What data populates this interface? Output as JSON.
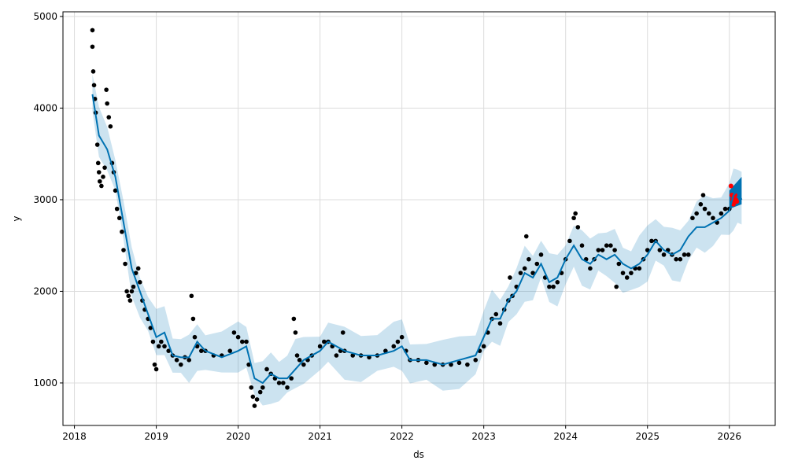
{
  "chart_data": {
    "type": "line",
    "title": "",
    "xlabel": "ds",
    "ylabel": "y",
    "xlim": [
      2017.86,
      2026.56
    ],
    "ylim": [
      536,
      5051
    ],
    "grid": true,
    "x_ticks": [
      2018,
      2019,
      2020,
      2021,
      2022,
      2023,
      2024,
      2025,
      2026
    ],
    "x_tick_labels": [
      "2018",
      "2019",
      "2020",
      "2021",
      "2022",
      "2023",
      "2024",
      "2025",
      "2026"
    ],
    "y_ticks": [
      1000,
      2000,
      3000,
      4000,
      5000
    ],
    "y_tick_labels": [
      "1000",
      "2000",
      "3000",
      "4000",
      "5000"
    ],
    "colors": {
      "observed": "#000000",
      "yhat": "#0072B2",
      "band": "#0072B2",
      "actual_recent": "#ff0000"
    },
    "observed": [
      [
        2018.22,
        4850
      ],
      [
        2018.22,
        4670
      ],
      [
        2018.23,
        4400
      ],
      [
        2018.24,
        4250
      ],
      [
        2018.25,
        4100
      ],
      [
        2018.26,
        3950
      ],
      [
        2018.28,
        3600
      ],
      [
        2018.29,
        3400
      ],
      [
        2018.3,
        3300
      ],
      [
        2018.31,
        3200
      ],
      [
        2018.33,
        3150
      ],
      [
        2018.35,
        3250
      ],
      [
        2018.37,
        3350
      ],
      [
        2018.39,
        4200
      ],
      [
        2018.4,
        4050
      ],
      [
        2018.42,
        3900
      ],
      [
        2018.44,
        3800
      ],
      [
        2018.46,
        3400
      ],
      [
        2018.48,
        3300
      ],
      [
        2018.5,
        3100
      ],
      [
        2018.52,
        2900
      ],
      [
        2018.55,
        2800
      ],
      [
        2018.58,
        2650
      ],
      [
        2018.6,
        2450
      ],
      [
        2018.62,
        2300
      ],
      [
        2018.64,
        2000
      ],
      [
        2018.66,
        1950
      ],
      [
        2018.68,
        1900
      ],
      [
        2018.7,
        2000
      ],
      [
        2018.72,
        2050
      ],
      [
        2018.75,
        2200
      ],
      [
        2018.78,
        2250
      ],
      [
        2018.8,
        2100
      ],
      [
        2018.83,
        1900
      ],
      [
        2018.86,
        1800
      ],
      [
        2018.9,
        1700
      ],
      [
        2018.93,
        1600
      ],
      [
        2018.96,
        1450
      ],
      [
        2018.98,
        1200
      ],
      [
        2019.0,
        1150
      ],
      [
        2019.03,
        1400
      ],
      [
        2019.06,
        1450
      ],
      [
        2019.1,
        1400
      ],
      [
        2019.15,
        1350
      ],
      [
        2019.2,
        1300
      ],
      [
        2019.25,
        1250
      ],
      [
        2019.3,
        1200
      ],
      [
        2019.35,
        1280
      ],
      [
        2019.4,
        1250
      ],
      [
        2019.43,
        1950
      ],
      [
        2019.45,
        1700
      ],
      [
        2019.47,
        1500
      ],
      [
        2019.5,
        1400
      ],
      [
        2019.55,
        1350
      ],
      [
        2019.6,
        1350
      ],
      [
        2019.7,
        1300
      ],
      [
        2019.8,
        1300
      ],
      [
        2019.9,
        1350
      ],
      [
        2019.95,
        1550
      ],
      [
        2020.0,
        1500
      ],
      [
        2020.05,
        1450
      ],
      [
        2020.1,
        1450
      ],
      [
        2020.13,
        1200
      ],
      [
        2020.16,
        950
      ],
      [
        2020.18,
        850
      ],
      [
        2020.2,
        750
      ],
      [
        2020.23,
        820
      ],
      [
        2020.27,
        900
      ],
      [
        2020.3,
        950
      ],
      [
        2020.35,
        1150
      ],
      [
        2020.4,
        1100
      ],
      [
        2020.45,
        1050
      ],
      [
        2020.5,
        1000
      ],
      [
        2020.55,
        1000
      ],
      [
        2020.6,
        950
      ],
      [
        2020.65,
        1050
      ],
      [
        2020.68,
        1700
      ],
      [
        2020.7,
        1550
      ],
      [
        2020.72,
        1300
      ],
      [
        2020.75,
        1250
      ],
      [
        2020.8,
        1200
      ],
      [
        2020.85,
        1250
      ],
      [
        2020.9,
        1300
      ],
      [
        2021.0,
        1400
      ],
      [
        2021.05,
        1450
      ],
      [
        2021.1,
        1450
      ],
      [
        2021.15,
        1400
      ],
      [
        2021.2,
        1300
      ],
      [
        2021.25,
        1350
      ],
      [
        2021.28,
        1550
      ],
      [
        2021.3,
        1350
      ],
      [
        2021.4,
        1300
      ],
      [
        2021.5,
        1300
      ],
      [
        2021.6,
        1280
      ],
      [
        2021.7,
        1300
      ],
      [
        2021.8,
        1350
      ],
      [
        2021.9,
        1400
      ],
      [
        2021.95,
        1450
      ],
      [
        2022.0,
        1500
      ],
      [
        2022.05,
        1350
      ],
      [
        2022.1,
        1250
      ],
      [
        2022.2,
        1250
      ],
      [
        2022.3,
        1220
      ],
      [
        2022.4,
        1200
      ],
      [
        2022.5,
        1200
      ],
      [
        2022.6,
        1200
      ],
      [
        2022.7,
        1220
      ],
      [
        2022.8,
        1200
      ],
      [
        2022.9,
        1250
      ],
      [
        2022.95,
        1350
      ],
      [
        2023.0,
        1400
      ],
      [
        2023.05,
        1550
      ],
      [
        2023.1,
        1700
      ],
      [
        2023.15,
        1750
      ],
      [
        2023.2,
        1650
      ],
      [
        2023.25,
        1800
      ],
      [
        2023.3,
        1900
      ],
      [
        2023.32,
        2150
      ],
      [
        2023.35,
        1950
      ],
      [
        2023.4,
        2050
      ],
      [
        2023.45,
        2200
      ],
      [
        2023.5,
        2250
      ],
      [
        2023.52,
        2600
      ],
      [
        2023.55,
        2350
      ],
      [
        2023.6,
        2200
      ],
      [
        2023.65,
        2300
      ],
      [
        2023.7,
        2400
      ],
      [
        2023.75,
        2150
      ],
      [
        2023.8,
        2050
      ],
      [
        2023.85,
        2050
      ],
      [
        2023.9,
        2100
      ],
      [
        2023.95,
        2200
      ],
      [
        2024.0,
        2350
      ],
      [
        2024.05,
        2550
      ],
      [
        2024.1,
        2800
      ],
      [
        2024.12,
        2850
      ],
      [
        2024.15,
        2700
      ],
      [
        2024.2,
        2500
      ],
      [
        2024.25,
        2350
      ],
      [
        2024.3,
        2250
      ],
      [
        2024.35,
        2350
      ],
      [
        2024.4,
        2450
      ],
      [
        2024.45,
        2450
      ],
      [
        2024.5,
        2500
      ],
      [
        2024.55,
        2500
      ],
      [
        2024.6,
        2450
      ],
      [
        2024.62,
        2050
      ],
      [
        2024.65,
        2300
      ],
      [
        2024.7,
        2200
      ],
      [
        2024.75,
        2150
      ],
      [
        2024.8,
        2200
      ],
      [
        2024.85,
        2250
      ],
      [
        2024.9,
        2250
      ],
      [
        2024.95,
        2350
      ],
      [
        2025.0,
        2450
      ],
      [
        2025.05,
        2550
      ],
      [
        2025.1,
        2550
      ],
      [
        2025.15,
        2450
      ],
      [
        2025.2,
        2400
      ],
      [
        2025.25,
        2450
      ],
      [
        2025.3,
        2400
      ],
      [
        2025.35,
        2350
      ],
      [
        2025.4,
        2350
      ],
      [
        2025.45,
        2400
      ],
      [
        2025.5,
        2400
      ],
      [
        2025.55,
        2800
      ],
      [
        2025.6,
        2850
      ],
      [
        2025.65,
        2950
      ],
      [
        2025.68,
        3050
      ],
      [
        2025.7,
        2900
      ],
      [
        2025.75,
        2850
      ],
      [
        2025.8,
        2800
      ],
      [
        2025.85,
        2750
      ],
      [
        2025.9,
        2850
      ],
      [
        2025.95,
        2900
      ],
      [
        2026.0,
        2900
      ]
    ],
    "actual_recent": [
      [
        2026.02,
        3150
      ],
      [
        2026.03,
        3050
      ],
      [
        2026.04,
        3000
      ],
      [
        2026.05,
        2950
      ],
      [
        2026.06,
        3000
      ],
      [
        2026.07,
        3050
      ],
      [
        2026.08,
        3000
      ],
      [
        2026.09,
        2980
      ]
    ],
    "yhat": [
      [
        2018.22,
        4150
      ],
      [
        2018.3,
        3700
      ],
      [
        2018.4,
        3550
      ],
      [
        2018.5,
        3250
      ],
      [
        2018.6,
        2750
      ],
      [
        2018.7,
        2250
      ],
      [
        2018.8,
        2000
      ],
      [
        2018.9,
        1750
      ],
      [
        2019.0,
        1500
      ],
      [
        2019.1,
        1550
      ],
      [
        2019.2,
        1300
      ],
      [
        2019.3,
        1280
      ],
      [
        2019.4,
        1280
      ],
      [
        2019.5,
        1450
      ],
      [
        2019.6,
        1350
      ],
      [
        2019.8,
        1280
      ],
      [
        2020.0,
        1350
      ],
      [
        2020.1,
        1400
      ],
      [
        2020.2,
        1050
      ],
      [
        2020.3,
        1000
      ],
      [
        2020.4,
        1100
      ],
      [
        2020.5,
        1050
      ],
      [
        2020.6,
        1050
      ],
      [
        2020.7,
        1150
      ],
      [
        2020.8,
        1250
      ],
      [
        2021.0,
        1350
      ],
      [
        2021.1,
        1450
      ],
      [
        2021.3,
        1350
      ],
      [
        2021.5,
        1300
      ],
      [
        2021.7,
        1300
      ],
      [
        2021.9,
        1350
      ],
      [
        2022.0,
        1400
      ],
      [
        2022.1,
        1250
      ],
      [
        2022.3,
        1250
      ],
      [
        2022.5,
        1200
      ],
      [
        2022.7,
        1250
      ],
      [
        2022.9,
        1300
      ],
      [
        2023.0,
        1500
      ],
      [
        2023.1,
        1700
      ],
      [
        2023.2,
        1700
      ],
      [
        2023.3,
        1900
      ],
      [
        2023.4,
        2000
      ],
      [
        2023.5,
        2200
      ],
      [
        2023.6,
        2150
      ],
      [
        2023.7,
        2300
      ],
      [
        2023.8,
        2100
      ],
      [
        2023.9,
        2150
      ],
      [
        2024.0,
        2350
      ],
      [
        2024.1,
        2500
      ],
      [
        2024.2,
        2350
      ],
      [
        2024.3,
        2300
      ],
      [
        2024.4,
        2400
      ],
      [
        2024.5,
        2350
      ],
      [
        2024.6,
        2400
      ],
      [
        2024.7,
        2300
      ],
      [
        2024.8,
        2250
      ],
      [
        2024.9,
        2300
      ],
      [
        2025.0,
        2400
      ],
      [
        2025.1,
        2550
      ],
      [
        2025.2,
        2450
      ],
      [
        2025.3,
        2400
      ],
      [
        2025.4,
        2450
      ],
      [
        2025.5,
        2600
      ],
      [
        2025.6,
        2700
      ],
      [
        2025.7,
        2700
      ],
      [
        2025.8,
        2750
      ],
      [
        2025.9,
        2800
      ],
      [
        2026.0,
        2880
      ],
      [
        2026.05,
        3050
      ],
      [
        2026.1,
        3100
      ],
      [
        2026.15,
        3000
      ]
    ],
    "band_halfwidth": [
      [
        2018.2,
        220
      ],
      [
        2025.9,
        260
      ],
      [
        2026.0,
        280
      ],
      [
        2026.15,
        320
      ]
    ],
    "forecast_interval": {
      "x": [
        2026.0,
        2026.15
      ],
      "lower": [
        2900,
        2950
      ],
      "upper": [
        3100,
        3250
      ]
    }
  }
}
